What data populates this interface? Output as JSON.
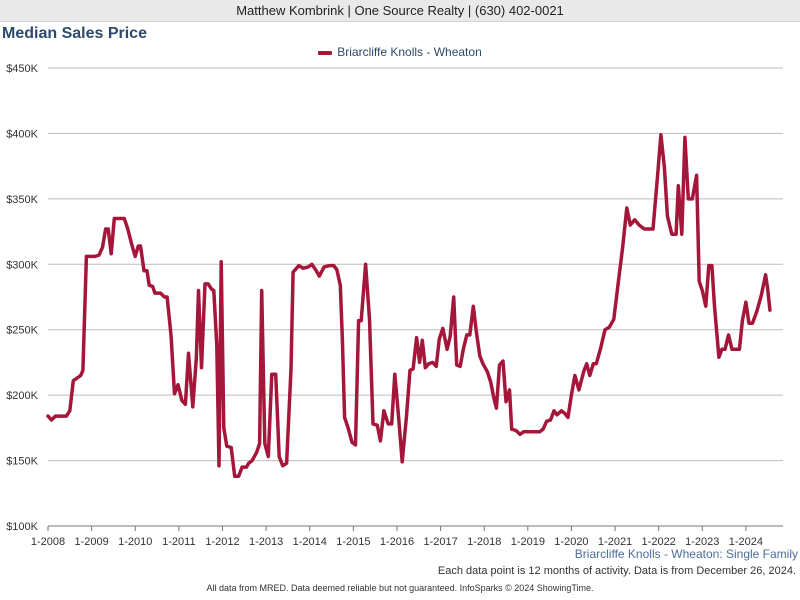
{
  "header": {
    "agent": "Matthew Kombrink | One Source Realty | (630) 402-0021"
  },
  "chart_data": {
    "type": "line",
    "title": "Median Sales Price",
    "subtitle": "Briarcliffe Knolls - Wheaton: Single Family",
    "note": "Each data point is 12 months of activity. Data is from December 26, 2024.",
    "footer": "All data from MRED. Data deemed reliable but not guaranteed. InfoSparks © 2024 ShowingTime.",
    "xlabel": "",
    "ylabel": "",
    "ylim": [
      100000,
      450000
    ],
    "yticks": [
      100000,
      150000,
      200000,
      250000,
      300000,
      350000,
      400000,
      450000
    ],
    "ytick_labels": [
      "$100K",
      "$150K",
      "$200K",
      "$250K",
      "$300K",
      "$350K",
      "$400K",
      "$450K"
    ],
    "xlim": [
      2008.0,
      2024.85
    ],
    "xticks": [
      2008,
      2009,
      2010,
      2011,
      2012,
      2013,
      2014,
      2015,
      2016,
      2017,
      2018,
      2019,
      2020,
      2021,
      2022,
      2023,
      2024
    ],
    "xtick_labels": [
      "1-2008",
      "1-2009",
      "1-2010",
      "1-2011",
      "1-2012",
      "1-2013",
      "1-2014",
      "1-2015",
      "1-2016",
      "1-2017",
      "1-2018",
      "1-2019",
      "1-2020",
      "1-2021",
      "1-2022",
      "1-2023",
      "1-2024"
    ],
    "grid": true,
    "legend_position": "top-center",
    "color": "#a5173a",
    "series": [
      {
        "name": "Briarcliffe Knolls - Wheaton",
        "points": [
          [
            2008.0,
            184000
          ],
          [
            2008.08,
            181000
          ],
          [
            2008.17,
            184000
          ],
          [
            2008.42,
            184000
          ],
          [
            2008.5,
            188000
          ],
          [
            2008.58,
            211000
          ],
          [
            2008.75,
            215000
          ],
          [
            2008.8,
            219000
          ],
          [
            2008.88,
            306000
          ],
          [
            2009.08,
            306000
          ],
          [
            2009.17,
            307000
          ],
          [
            2009.25,
            313000
          ],
          [
            2009.32,
            327000
          ],
          [
            2009.38,
            327000
          ],
          [
            2009.45,
            308000
          ],
          [
            2009.52,
            335000
          ],
          [
            2009.75,
            335000
          ],
          [
            2009.83,
            327000
          ],
          [
            2009.92,
            315000
          ],
          [
            2010.0,
            306000
          ],
          [
            2010.07,
            314000
          ],
          [
            2010.12,
            314000
          ],
          [
            2010.2,
            295000
          ],
          [
            2010.27,
            295000
          ],
          [
            2010.32,
            284000
          ],
          [
            2010.4,
            283000
          ],
          [
            2010.45,
            278000
          ],
          [
            2010.58,
            278000
          ],
          [
            2010.67,
            275000
          ],
          [
            2010.73,
            275000
          ],
          [
            2010.82,
            246000
          ],
          [
            2010.9,
            201000
          ],
          [
            2010.98,
            208000
          ],
          [
            2011.07,
            196000
          ],
          [
            2011.15,
            193000
          ],
          [
            2011.22,
            232000
          ],
          [
            2011.32,
            191000
          ],
          [
            2011.4,
            228000
          ],
          [
            2011.45,
            280000
          ],
          [
            2011.52,
            221000
          ],
          [
            2011.6,
            285000
          ],
          [
            2011.67,
            285000
          ],
          [
            2011.75,
            281000
          ],
          [
            2011.8,
            280000
          ],
          [
            2011.87,
            238000
          ],
          [
            2011.92,
            146000
          ],
          [
            2011.97,
            302000
          ],
          [
            2012.03,
            175000
          ],
          [
            2012.1,
            161000
          ],
          [
            2012.2,
            160000
          ],
          [
            2012.28,
            138000
          ],
          [
            2012.37,
            138000
          ],
          [
            2012.45,
            145000
          ],
          [
            2012.55,
            145000
          ],
          [
            2012.6,
            148000
          ],
          [
            2012.68,
            150000
          ],
          [
            2012.78,
            156000
          ],
          [
            2012.85,
            163000
          ],
          [
            2012.9,
            280000
          ],
          [
            2012.97,
            163000
          ],
          [
            2013.05,
            153000
          ],
          [
            2013.13,
            216000
          ],
          [
            2013.22,
            216000
          ],
          [
            2013.3,
            153000
          ],
          [
            2013.38,
            146000
          ],
          [
            2013.47,
            148000
          ],
          [
            2013.57,
            220000
          ],
          [
            2013.62,
            294000
          ],
          [
            2013.75,
            299000
          ],
          [
            2013.85,
            297000
          ],
          [
            2013.97,
            298000
          ],
          [
            2014.05,
            300000
          ],
          [
            2014.15,
            295000
          ],
          [
            2014.22,
            291000
          ],
          [
            2014.33,
            298000
          ],
          [
            2014.45,
            299000
          ],
          [
            2014.55,
            299000
          ],
          [
            2014.62,
            296000
          ],
          [
            2014.7,
            284000
          ],
          [
            2014.75,
            242000
          ],
          [
            2014.8,
            183000
          ],
          [
            2014.88,
            175000
          ],
          [
            2014.97,
            164000
          ],
          [
            2015.05,
            162000
          ],
          [
            2015.12,
            257000
          ],
          [
            2015.18,
            257000
          ],
          [
            2015.28,
            300000
          ],
          [
            2015.37,
            258000
          ],
          [
            2015.45,
            178000
          ],
          [
            2015.55,
            177000
          ],
          [
            2015.62,
            165000
          ],
          [
            2015.7,
            188000
          ],
          [
            2015.8,
            178000
          ],
          [
            2015.88,
            178000
          ],
          [
            2015.95,
            216000
          ],
          [
            2016.03,
            186000
          ],
          [
            2016.12,
            149000
          ],
          [
            2016.22,
            185000
          ],
          [
            2016.3,
            219000
          ],
          [
            2016.37,
            220000
          ],
          [
            2016.45,
            244000
          ],
          [
            2016.52,
            225000
          ],
          [
            2016.58,
            242000
          ],
          [
            2016.65,
            221000
          ],
          [
            2016.73,
            224000
          ],
          [
            2016.82,
            225000
          ],
          [
            2016.9,
            222000
          ],
          [
            2016.97,
            243000
          ],
          [
            2017.05,
            251000
          ],
          [
            2017.15,
            235000
          ],
          [
            2017.22,
            245000
          ],
          [
            2017.3,
            275000
          ],
          [
            2017.37,
            223000
          ],
          [
            2017.45,
            222000
          ],
          [
            2017.52,
            235000
          ],
          [
            2017.6,
            246000
          ],
          [
            2017.67,
            246000
          ],
          [
            2017.75,
            268000
          ],
          [
            2017.82,
            248000
          ],
          [
            2017.9,
            230000
          ],
          [
            2017.97,
            224000
          ],
          [
            2018.07,
            218000
          ],
          [
            2018.15,
            210000
          ],
          [
            2018.22,
            198000
          ],
          [
            2018.28,
            190000
          ],
          [
            2018.35,
            223000
          ],
          [
            2018.43,
            226000
          ],
          [
            2018.5,
            195000
          ],
          [
            2018.58,
            204000
          ],
          [
            2018.63,
            174000
          ],
          [
            2018.73,
            173000
          ],
          [
            2018.82,
            170000
          ],
          [
            2018.9,
            172000
          ],
          [
            2018.97,
            172000
          ],
          [
            2019.07,
            172000
          ],
          [
            2019.17,
            172000
          ],
          [
            2019.27,
            172000
          ],
          [
            2019.35,
            174000
          ],
          [
            2019.43,
            180000
          ],
          [
            2019.52,
            181000
          ],
          [
            2019.6,
            188000
          ],
          [
            2019.67,
            185000
          ],
          [
            2019.77,
            188000
          ],
          [
            2019.85,
            186000
          ],
          [
            2019.92,
            183000
          ],
          [
            2020.0,
            200000
          ],
          [
            2020.08,
            215000
          ],
          [
            2020.17,
            204000
          ],
          [
            2020.28,
            218000
          ],
          [
            2020.35,
            224000
          ],
          [
            2020.42,
            215000
          ],
          [
            2020.5,
            224000
          ],
          [
            2020.57,
            224000
          ],
          [
            2020.67,
            236000
          ],
          [
            2020.77,
            250000
          ],
          [
            2020.87,
            252000
          ],
          [
            2020.97,
            258000
          ],
          [
            2021.07,
            285000
          ],
          [
            2021.17,
            312000
          ],
          [
            2021.27,
            343000
          ],
          [
            2021.35,
            330000
          ],
          [
            2021.45,
            334000
          ],
          [
            2021.55,
            330000
          ],
          [
            2021.67,
            327000
          ],
          [
            2021.77,
            327000
          ],
          [
            2021.87,
            327000
          ],
          [
            2021.97,
            366000
          ],
          [
            2022.05,
            399000
          ],
          [
            2022.13,
            374000
          ],
          [
            2022.2,
            337000
          ],
          [
            2022.3,
            323000
          ],
          [
            2022.4,
            323000
          ],
          [
            2022.45,
            360000
          ],
          [
            2022.53,
            323000
          ],
          [
            2022.6,
            397000
          ],
          [
            2022.68,
            350000
          ],
          [
            2022.77,
            350000
          ],
          [
            2022.87,
            368000
          ],
          [
            2022.93,
            287000
          ],
          [
            2023.0,
            280000
          ],
          [
            2023.08,
            268000
          ],
          [
            2023.15,
            299000
          ],
          [
            2023.22,
            299000
          ],
          [
            2023.28,
            268000
          ],
          [
            2023.38,
            229000
          ],
          [
            2023.45,
            235000
          ],
          [
            2023.52,
            235000
          ],
          [
            2023.6,
            246000
          ],
          [
            2023.68,
            235000
          ],
          [
            2023.78,
            235000
          ],
          [
            2023.85,
            235000
          ],
          [
            2023.92,
            257000
          ],
          [
            2024.0,
            271000
          ],
          [
            2024.07,
            255000
          ],
          [
            2024.15,
            255000
          ],
          [
            2024.25,
            264000
          ],
          [
            2024.35,
            276000
          ],
          [
            2024.45,
            292000
          ],
          [
            2024.5,
            281000
          ],
          [
            2024.55,
            265000
          ]
        ]
      }
    ]
  }
}
